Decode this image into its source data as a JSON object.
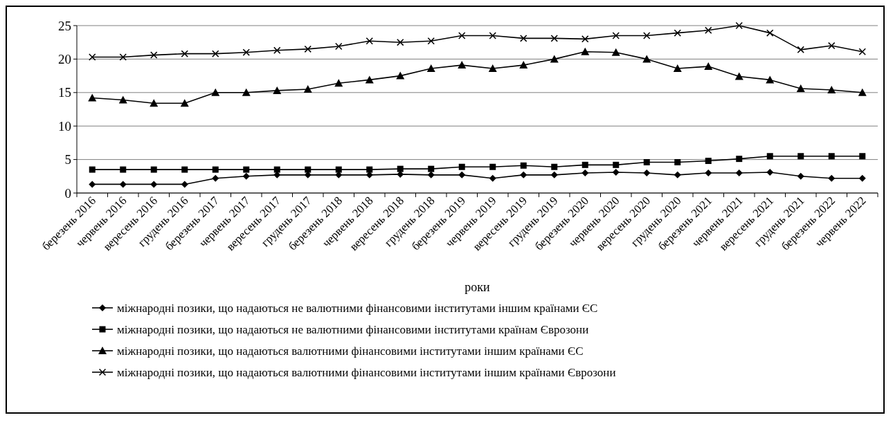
{
  "chart_data": {
    "type": "line",
    "xlabel": "роки",
    "categories": [
      "березень 2016",
      "червень 2016",
      "вересень 2016",
      "грудень 2016",
      "березень 2017",
      "червень 2017",
      "вересень 2017",
      "грудень 2017",
      "березень 2018",
      "червень 2018",
      "вересень 2018",
      "грудень 2018",
      "березень 2019",
      "червень 2019",
      "вересень 2019",
      "грудень 2019",
      "березень 2020",
      "червень 2020",
      "вересень 2020",
      "грудень 2020",
      "березень 2021",
      "червень 2021",
      "вересень 2021",
      "грудень 2021",
      "березень 2022",
      "червень 2022"
    ],
    "series": [
      {
        "name": "міжнародні позики, що надаються не валютними фінансовими інститутами іншим країнами ЄС",
        "color": "#000000",
        "marker": "diamond",
        "values": [
          1.3,
          1.3,
          1.3,
          1.3,
          2.2,
          2.5,
          2.7,
          2.7,
          2.7,
          2.7,
          2.8,
          2.7,
          2.7,
          2.2,
          2.7,
          2.7,
          3.0,
          3.1,
          3.0,
          2.7,
          3.0,
          3.0,
          3.1,
          2.5,
          2.2,
          2.2
        ]
      },
      {
        "name": "міжнародні позики, що надаються не валютними фінансовими інститутами країнам Єврозони",
        "color": "#000000",
        "marker": "square",
        "values": [
          3.5,
          3.5,
          3.5,
          3.5,
          3.5,
          3.5,
          3.5,
          3.5,
          3.5,
          3.5,
          3.6,
          3.6,
          3.9,
          3.9,
          4.1,
          3.9,
          4.2,
          4.2,
          4.6,
          4.6,
          4.8,
          5.1,
          5.5,
          5.5,
          5.5,
          5.5
        ]
      },
      {
        "name": "міжнародні позики, що надаються валютними фінансовими інститутами іншим країнами ЄС",
        "color": "#000000",
        "marker": "triangle",
        "values": [
          14.2,
          13.9,
          13.4,
          13.4,
          15.0,
          15.0,
          15.3,
          15.5,
          16.4,
          16.9,
          17.5,
          18.6,
          19.1,
          18.6,
          19.1,
          20.0,
          21.1,
          21.0,
          20.0,
          18.6,
          18.9,
          17.4,
          16.9,
          15.6,
          15.4,
          15.0
        ]
      },
      {
        "name": "міжнародні позики, що надаються валютними фінансовими інститутами іншим країнами Єврозони",
        "color": "#000000",
        "marker": "cross",
        "values": [
          20.3,
          20.3,
          20.6,
          20.8,
          20.8,
          21.0,
          21.3,
          21.5,
          21.9,
          22.7,
          22.5,
          22.7,
          23.5,
          23.5,
          23.1,
          23.1,
          23.0,
          23.5,
          23.5,
          23.9,
          24.3,
          25.0,
          23.9,
          21.4,
          22.0,
          21.1
        ]
      }
    ],
    "ylim": [
      0,
      25
    ],
    "yticks": [
      0,
      5,
      10,
      15,
      20,
      25
    ],
    "grid": "y",
    "legend": "bottom",
    "line_style": "solid"
  }
}
